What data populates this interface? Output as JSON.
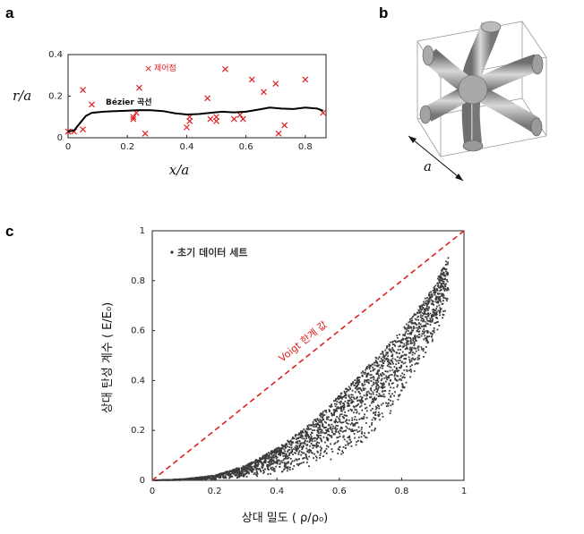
{
  "panels": {
    "a": "a",
    "b": "b",
    "c": "c"
  },
  "chart_data": [
    {
      "panel": "a",
      "type": "line",
      "xlabel": "x/a",
      "ylabel": "r/a",
      "xlim": [
        0,
        0.87
      ],
      "ylim": [
        0,
        0.4
      ],
      "xticks": [
        "0",
        "0.2",
        "0.4",
        "0.6",
        "0.8"
      ],
      "yticks": [
        "0",
        "0.2",
        "0.4"
      ],
      "series": [
        {
          "name": "Bézier 곡선",
          "type": "line",
          "x": [
            0.0,
            0.02,
            0.04,
            0.06,
            0.08,
            0.12,
            0.16,
            0.2,
            0.24,
            0.28,
            0.32,
            0.36,
            0.4,
            0.44,
            0.48,
            0.52,
            0.56,
            0.6,
            0.64,
            0.68,
            0.72,
            0.76,
            0.8,
            0.84,
            0.86
          ],
          "y": [
            0.03,
            0.035,
            0.07,
            0.105,
            0.12,
            0.125,
            0.128,
            0.13,
            0.133,
            0.132,
            0.128,
            0.118,
            0.112,
            0.114,
            0.12,
            0.125,
            0.122,
            0.125,
            0.135,
            0.145,
            0.14,
            0.138,
            0.145,
            0.14,
            0.13
          ]
        },
        {
          "name": "제어점",
          "type": "scatter",
          "x": [
            0.0,
            0.02,
            0.05,
            0.05,
            0.08,
            0.22,
            0.22,
            0.23,
            0.24,
            0.26,
            0.4,
            0.41,
            0.41,
            0.47,
            0.48,
            0.5,
            0.5,
            0.53,
            0.56,
            0.58,
            0.59,
            0.62,
            0.66,
            0.7,
            0.71,
            0.73,
            0.8,
            0.86
          ],
          "y": [
            0.03,
            0.03,
            0.23,
            0.04,
            0.16,
            0.09,
            0.1,
            0.12,
            0.24,
            0.02,
            0.05,
            0.08,
            0.1,
            0.19,
            0.09,
            0.1,
            0.08,
            0.33,
            0.09,
            0.11,
            0.09,
            0.28,
            0.22,
            0.26,
            0.02,
            0.06,
            0.28,
            0.12
          ]
        }
      ]
    },
    {
      "panel": "c",
      "type": "scatter",
      "xlabel": "상대 밀도 ( ρ/ρ₀)",
      "ylabel": "상대 탄성 계수 ( E/E₀)",
      "xlim": [
        0,
        1
      ],
      "ylim": [
        0,
        1
      ],
      "xticks": [
        "0",
        "0.2",
        "0.4",
        "0.6",
        "0.8",
        "1"
      ],
      "yticks": [
        "0",
        "0.2",
        "0.4",
        "0.6",
        "0.8",
        "1"
      ],
      "legend": "초기 데이터 세트",
      "legend_position": "top-left",
      "reference_line": {
        "name": "Voigt 한계 값",
        "x": [
          0,
          1
        ],
        "y": [
          0,
          1
        ],
        "style": "dashed",
        "color": "#e02020"
      },
      "series": [
        {
          "name": "초기 데이터 세트",
          "upper_envelope": {
            "x": [
              0.0,
              0.1,
              0.2,
              0.3,
              0.4,
              0.5,
              0.6,
              0.7,
              0.8,
              0.9,
              0.95
            ],
            "y": [
              0.0,
              0.005,
              0.02,
              0.06,
              0.13,
              0.22,
              0.34,
              0.47,
              0.6,
              0.77,
              0.9
            ]
          },
          "lower_envelope": {
            "x": [
              0.0,
              0.1,
              0.2,
              0.3,
              0.4,
              0.5,
              0.6,
              0.7,
              0.8,
              0.9,
              0.95
            ],
            "y": [
              0.0,
              0.0,
              0.003,
              0.01,
              0.025,
              0.05,
              0.09,
              0.17,
              0.32,
              0.55,
              0.7
            ]
          }
        }
      ]
    }
  ],
  "colors": {
    "bezier_line": "#000000",
    "control_points": "#e02020",
    "scatter_points": "#3a3a3a",
    "voigt_line": "#e02020",
    "lattice_fill": "#9a9a9a"
  }
}
